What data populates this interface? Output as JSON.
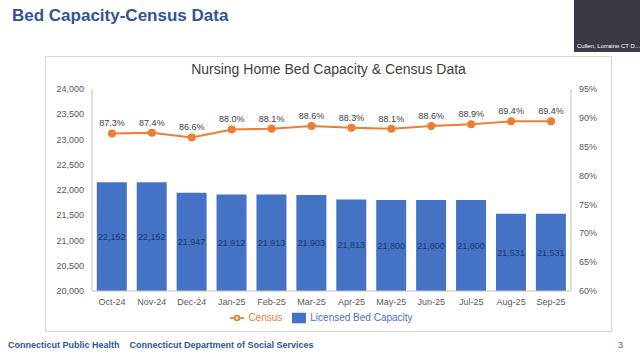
{
  "chart_data": {
    "type": "bar",
    "title": "Nursing Home Bed Capacity & Census Data",
    "categories": [
      "Oct-24",
      "Nov-24",
      "Dec-24",
      "Jan-25",
      "Feb-25",
      "Mar-25",
      "Apr-25",
      "May-25",
      "Jun-25",
      "Jul-25",
      "Aug-25",
      "Sep-25"
    ],
    "series": [
      {
        "name": "Licensed Bed Capacity",
        "type": "bar",
        "color": "#4472c4",
        "values": [
          22152,
          22152,
          21947,
          21912,
          21913,
          21903,
          21813,
          21800,
          21800,
          21800,
          21531,
          21531
        ],
        "value_labels": [
          "22,152",
          "22,152",
          "21,947",
          "21,912",
          "21,913",
          "21,903",
          "21,813",
          "21,800",
          "21,800",
          "21,800",
          "21,531",
          "21,531"
        ]
      },
      {
        "name": "Census",
        "type": "line",
        "axis": "y2",
        "color": "#ed7d31",
        "marker": "circle",
        "line_style": "solid",
        "values": [
          87.3,
          87.4,
          86.6,
          88.0,
          88.1,
          88.6,
          88.3,
          88.1,
          88.6,
          88.9,
          89.4,
          89.4
        ],
        "value_labels": [
          "87.3%",
          "87.4%",
          "86.6%",
          "88.0%",
          "88.1%",
          "88.6%",
          "88.3%",
          "88.1%",
          "88.6%",
          "88.9%",
          "89.4%",
          "89.4%"
        ]
      }
    ],
    "ylim": [
      20000,
      24000
    ],
    "yticks": [
      {
        "value": 20000,
        "label": "20,000"
      },
      {
        "value": 20500,
        "label": "20,500"
      },
      {
        "value": 21000,
        "label": "21,000"
      },
      {
        "value": 21500,
        "label": "21,500"
      },
      {
        "value": 22000,
        "label": "22,000"
      },
      {
        "value": 22500,
        "label": "22,500"
      },
      {
        "value": 23000,
        "label": "23,000"
      },
      {
        "value": 23500,
        "label": "23,500"
      },
      {
        "value": 24000,
        "label": "24,000"
      }
    ],
    "y2lim": [
      60,
      95
    ],
    "y2ticks": [
      {
        "value": 60,
        "label": "60%"
      },
      {
        "value": 65,
        "label": "65%"
      },
      {
        "value": 70,
        "label": "70%"
      },
      {
        "value": 75,
        "label": "75%"
      },
      {
        "value": 80,
        "label": "80%"
      },
      {
        "value": 85,
        "label": "85%"
      },
      {
        "value": 90,
        "label": "90%"
      },
      {
        "value": 95,
        "label": "95%"
      }
    ],
    "grid": false,
    "legend": "bottom",
    "data_labels": true
  },
  "slide": {
    "title": "Bed Capacity-Census Data",
    "footer": [
      "Connecticut Public Health",
      "Connecticut Department of Social Services"
    ],
    "page_number": "3",
    "presenter": "Cullen, Lorraine CT D..."
  }
}
